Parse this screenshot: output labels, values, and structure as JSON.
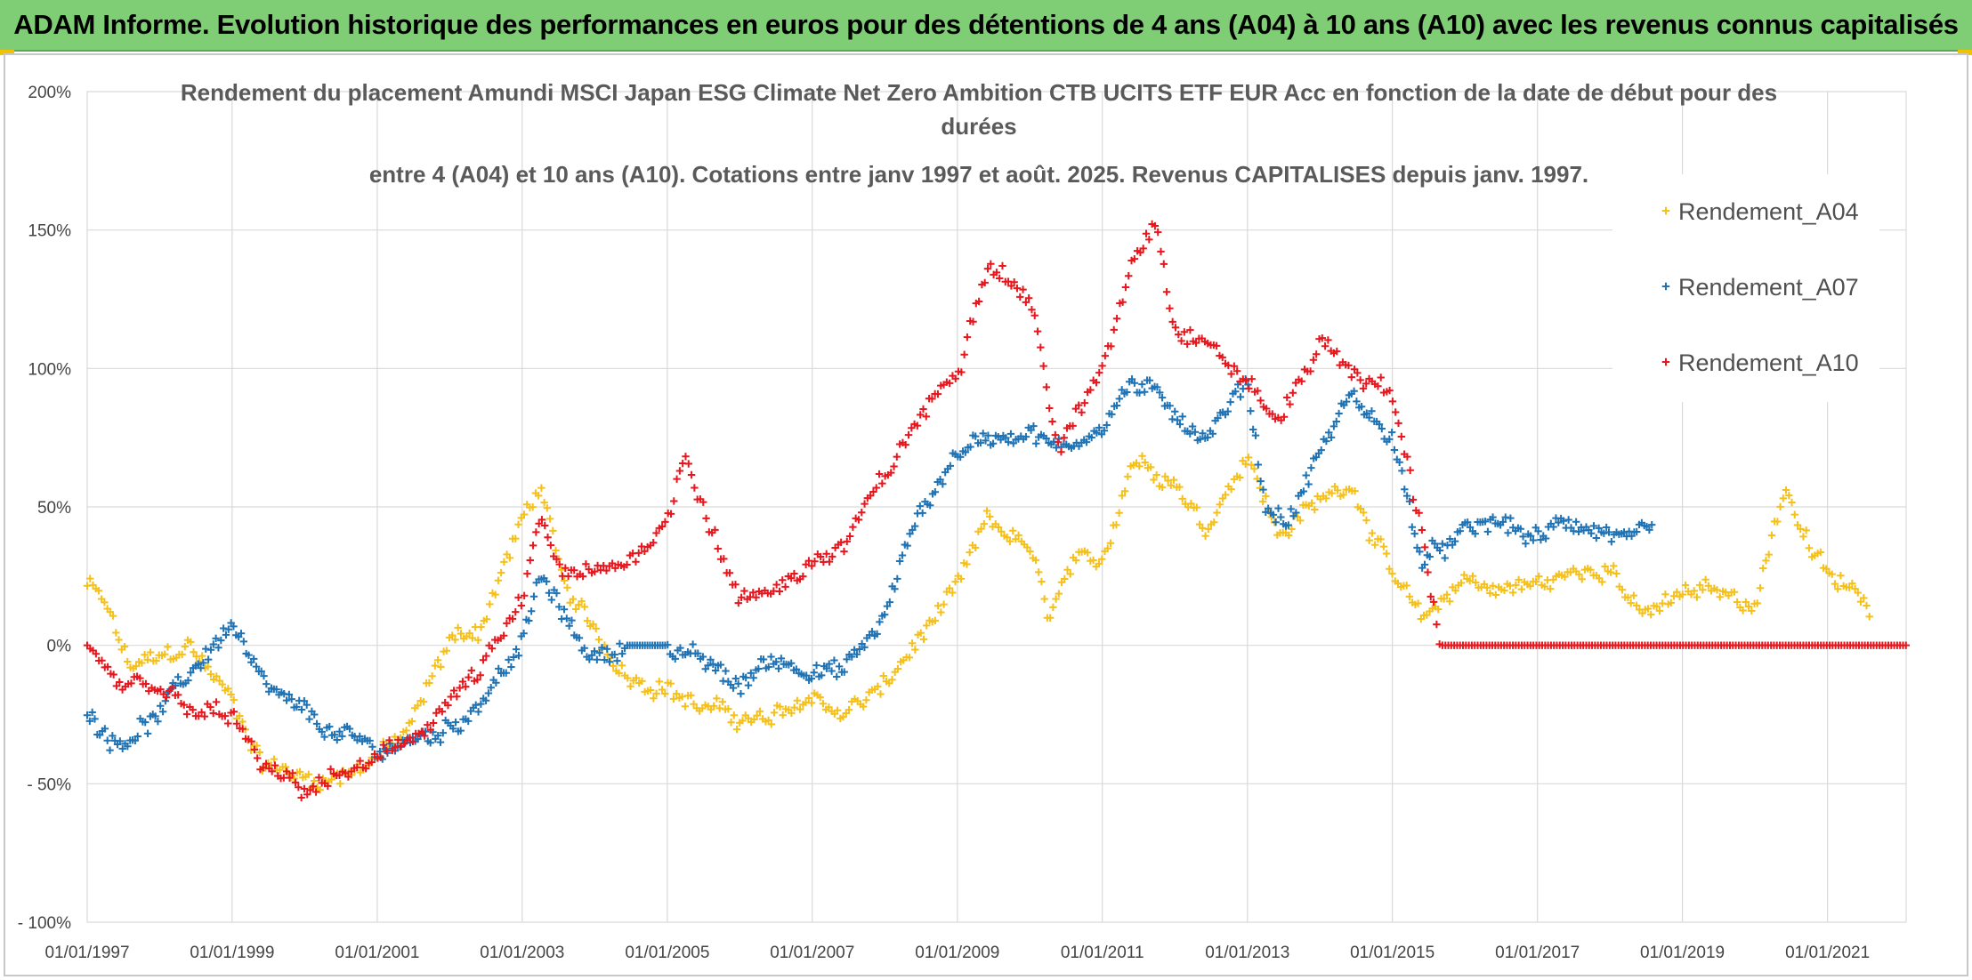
{
  "header": {
    "banner_title": "ADAM Informe. Evolution historique des performances en euros pour des détentions de 4 ans (A04) à 10 ans (A10) avec les revenus connus capitalisés"
  },
  "chart_data": {
    "type": "scatter",
    "title_lines": [
      "Rendement du placement Amundi MSCI Japan ESG Climate Net Zero Ambition CTB UCITS ETF EUR Acc en fonction de la date de début pour des",
      "durées",
      "entre 4 (A04) et 10 ans (A10). Cotations entre janv 1997 et août. 2025. Revenus CAPITALISES depuis janv. 1997."
    ],
    "xlabel": "",
    "ylabel": "",
    "x_ticks": [
      "01/01/1997",
      "01/01/1999",
      "01/01/2001",
      "01/01/2003",
      "01/01/2005",
      "01/01/2007",
      "01/01/2009",
      "01/01/2011",
      "01/01/2013",
      "01/01/2015",
      "01/01/2017",
      "01/01/2019",
      "01/01/2021"
    ],
    "y_ticks": [
      "- 100%",
      "- 50%",
      "0%",
      "50%",
      "100%",
      "150%",
      "200%"
    ],
    "xlim": [
      "1997-01-01",
      "2022-02-01"
    ],
    "ylim": [
      -100,
      200
    ],
    "grid": true,
    "legend_position": "top-right",
    "marker": "+",
    "series": [
      {
        "name": "Rendement_A04",
        "color": "#f5c01a",
        "x_range": [
          "1997-01-01",
          "2021-07-31"
        ],
        "points": [
          [
            "1997-01-01",
            22
          ],
          [
            "1997-04-01",
            15
          ],
          [
            "1997-08-01",
            -8
          ],
          [
            "1998-01-01",
            -5
          ],
          [
            "1998-06-01",
            0
          ],
          [
            "1999-01-01",
            -20
          ],
          [
            "1999-06-01",
            -42
          ],
          [
            "2000-01-01",
            -48
          ],
          [
            "2000-06-01",
            -48
          ],
          [
            "2001-01-01",
            -40
          ],
          [
            "2001-06-01",
            -32
          ],
          [
            "2002-01-01",
            2
          ],
          [
            "2002-06-01",
            6
          ],
          [
            "2003-01-01",
            45
          ],
          [
            "2003-04-01",
            58
          ],
          [
            "2003-08-01",
            20
          ],
          [
            "2004-01-01",
            5
          ],
          [
            "2004-06-01",
            -10
          ],
          [
            "2005-01-01",
            -15
          ],
          [
            "2005-06-01",
            -22
          ],
          [
            "2006-01-01",
            -26
          ],
          [
            "2006-06-01",
            -28
          ],
          [
            "2007-01-01",
            -18
          ],
          [
            "2007-06-01",
            -25
          ],
          [
            "2008-01-01",
            -15
          ],
          [
            "2008-06-01",
            0
          ],
          [
            "2009-01-01",
            20
          ],
          [
            "2009-06-01",
            45
          ],
          [
            "2010-01-01",
            35
          ],
          [
            "2010-04-01",
            10
          ],
          [
            "2010-08-01",
            28
          ],
          [
            "2011-01-01",
            30
          ],
          [
            "2011-06-01",
            68
          ],
          [
            "2012-01-01",
            60
          ],
          [
            "2012-06-01",
            42
          ],
          [
            "2013-01-01",
            70
          ],
          [
            "2013-06-01",
            40
          ],
          [
            "2014-01-01",
            52
          ],
          [
            "2014-06-01",
            60
          ],
          [
            "2015-01-01",
            25
          ],
          [
            "2015-06-01",
            8
          ],
          [
            "2016-01-01",
            25
          ],
          [
            "2016-06-01",
            20
          ],
          [
            "2017-01-01",
            22
          ],
          [
            "2017-06-01",
            25
          ],
          [
            "2018-01-01",
            30
          ],
          [
            "2018-06-01",
            10
          ],
          [
            "2019-01-01",
            18
          ],
          [
            "2019-06-01",
            20
          ],
          [
            "2020-01-01",
            15
          ],
          [
            "2020-06-01",
            58
          ],
          [
            "2020-10-01",
            35
          ],
          [
            "2021-01-01",
            25
          ],
          [
            "2021-07-31",
            15
          ]
        ]
      },
      {
        "name": "Rendement_A07",
        "color": "#1f73b4",
        "x_range": [
          "1997-01-01",
          "2018-07-31"
        ],
        "points": [
          [
            "1997-01-01",
            -25
          ],
          [
            "1997-06-01",
            -35
          ],
          [
            "1998-01-01",
            -25
          ],
          [
            "1998-06-01",
            -10
          ],
          [
            "1999-01-01",
            8
          ],
          [
            "1999-06-01",
            -15
          ],
          [
            "2000-01-01",
            -25
          ],
          [
            "2000-06-01",
            -32
          ],
          [
            "2001-01-01",
            -38
          ],
          [
            "2001-06-01",
            -35
          ],
          [
            "2002-01-01",
            -30
          ],
          [
            "2002-06-01",
            -20
          ],
          [
            "2003-01-01",
            0
          ],
          [
            "2003-04-01",
            25
          ],
          [
            "2003-08-01",
            10
          ],
          [
            "2004-01-01",
            -5
          ],
          [
            "2004-06-01",
            0
          ],
          [
            "2005-01-01",
            0
          ],
          [
            "2005-06-01",
            -5
          ],
          [
            "2006-01-01",
            -15
          ],
          [
            "2006-06-01",
            -5
          ],
          [
            "2007-01-01",
            -8
          ],
          [
            "2007-06-01",
            -10
          ],
          [
            "2008-01-01",
            10
          ],
          [
            "2008-06-01",
            45
          ],
          [
            "2009-01-01",
            70
          ],
          [
            "2009-06-01",
            75
          ],
          [
            "2010-01-01",
            78
          ],
          [
            "2010-06-01",
            70
          ],
          [
            "2011-01-01",
            80
          ],
          [
            "2011-06-01",
            95
          ],
          [
            "2012-01-01",
            85
          ],
          [
            "2012-06-01",
            75
          ],
          [
            "2013-01-01",
            95
          ],
          [
            "2013-04-01",
            50
          ],
          [
            "2013-08-01",
            45
          ],
          [
            "2014-01-01",
            70
          ],
          [
            "2014-06-01",
            90
          ],
          [
            "2015-01-01",
            75
          ],
          [
            "2015-06-01",
            30
          ],
          [
            "2016-01-01",
            40
          ],
          [
            "2016-06-01",
            45
          ],
          [
            "2017-01-01",
            38
          ],
          [
            "2017-06-01",
            45
          ],
          [
            "2018-01-01",
            40
          ],
          [
            "2018-07-31",
            38
          ]
        ]
      },
      {
        "name": "Rendement_A10",
        "color": "#e8161d",
        "x_range": [
          "1997-01-01",
          "2022-01-31"
        ],
        "points": [
          [
            "1997-01-01",
            0
          ],
          [
            "1997-06-01",
            -15
          ],
          [
            "1998-01-01",
            -15
          ],
          [
            "1998-06-01",
            -25
          ],
          [
            "1999-01-01",
            -25
          ],
          [
            "1999-06-01",
            -45
          ],
          [
            "2000-01-01",
            -52
          ],
          [
            "2000-06-01",
            -48
          ],
          [
            "2001-01-01",
            -42
          ],
          [
            "2001-06-01",
            -35
          ],
          [
            "2002-01-01",
            -20
          ],
          [
            "2002-06-01",
            -10
          ],
          [
            "2003-01-01",
            15
          ],
          [
            "2003-04-01",
            45
          ],
          [
            "2003-08-01",
            25
          ],
          [
            "2004-01-01",
            25
          ],
          [
            "2004-06-01",
            30
          ],
          [
            "2005-01-01",
            45
          ],
          [
            "2005-04-01",
            70
          ],
          [
            "2005-08-01",
            45
          ],
          [
            "2006-01-01",
            15
          ],
          [
            "2006-06-01",
            20
          ],
          [
            "2007-01-01",
            30
          ],
          [
            "2007-06-01",
            35
          ],
          [
            "2008-01-01",
            60
          ],
          [
            "2008-06-01",
            80
          ],
          [
            "2009-01-01",
            100
          ],
          [
            "2009-06-01",
            140
          ],
          [
            "2010-01-01",
            125
          ],
          [
            "2010-06-01",
            70
          ],
          [
            "2011-01-01",
            100
          ],
          [
            "2011-06-01",
            140
          ],
          [
            "2011-10-01",
            155
          ],
          [
            "2012-01-01",
            115
          ],
          [
            "2012-06-01",
            110
          ],
          [
            "2013-01-01",
            95
          ],
          [
            "2013-06-01",
            80
          ],
          [
            "2014-01-01",
            110
          ],
          [
            "2014-06-01",
            100
          ],
          [
            "2015-01-01",
            90
          ],
          [
            "2015-06-01",
            40
          ],
          [
            "2015-09-01",
            0
          ],
          [
            "2016-06-01",
            0
          ],
          [
            "2017-06-01",
            0
          ],
          [
            "2018-06-01",
            0
          ],
          [
            "2019-06-01",
            0
          ],
          [
            "2020-06-01",
            0
          ],
          [
            "2021-06-01",
            0
          ],
          [
            "2022-01-31",
            0
          ]
        ]
      }
    ]
  }
}
